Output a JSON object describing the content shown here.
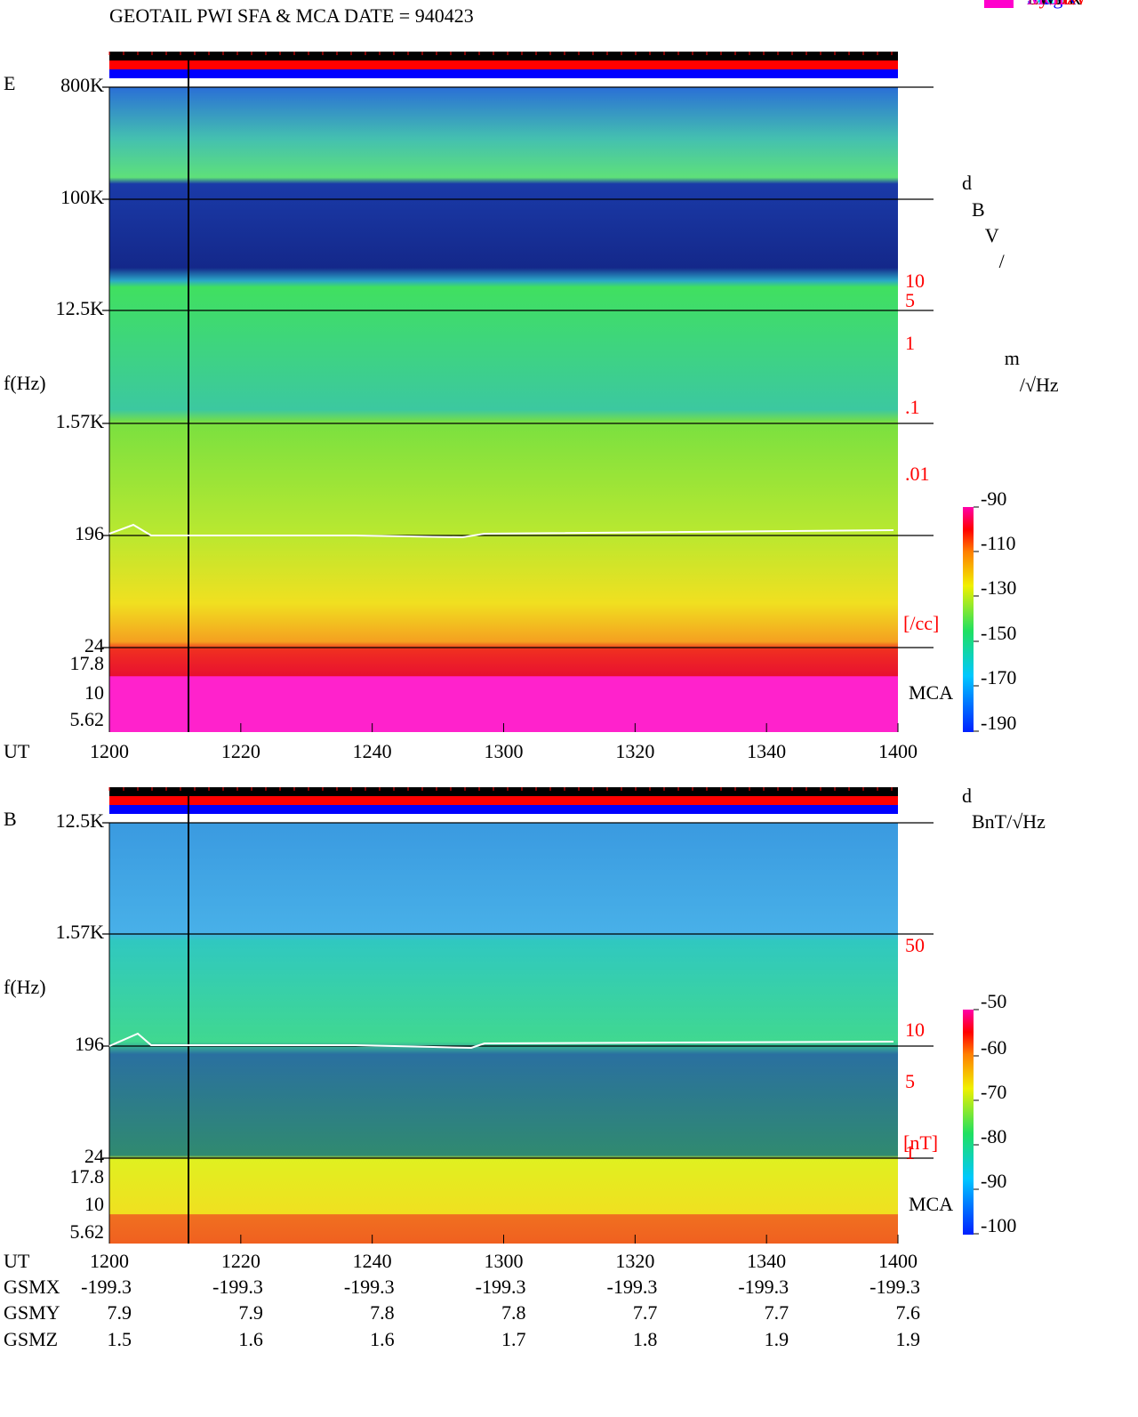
{
  "title": "GEOTAIL  PWI SFA & MCA   DATE = 940423",
  "time_axis": {
    "label": "UT",
    "ticks": [
      "1200",
      "1220",
      "1240",
      "1300",
      "1320",
      "1340",
      "1400"
    ]
  },
  "panel_e": {
    "label": "E",
    "ylabel": "f(Hz)",
    "freq_ticks": [
      "800K",
      "100K",
      "12.5K",
      "1.57K",
      "196",
      "24",
      "17.8",
      "10",
      "5.62"
    ],
    "density_ticks": [
      "10",
      "5",
      "1",
      ".1",
      ".01"
    ],
    "density_unit": "[/cc]",
    "mca": "MCA",
    "legend": [
      {
        "name": "MemR",
        "color": "#000000"
      },
      {
        "name": "MemW",
        "color": "#ff0000"
      },
      {
        "name": "Sing",
        "color": "#0000ff"
      },
      {
        "name": "Dual",
        "color": "#00e5ee"
      },
      {
        "name": "Ex Bx",
        "color": "#0000ff"
      },
      {
        "name": "Ey Bz",
        "color": "#ff0000"
      }
    ],
    "colorbar_unit": "dBV/m/√Hz",
    "colorbar_ticks": [
      "-90",
      "-110",
      "-130",
      "-150",
      "-170",
      "-190"
    ]
  },
  "panel_b": {
    "label": "B",
    "ylabel": "f(Hz)",
    "freq_ticks": [
      "12.5K",
      "1.57K",
      "196",
      "24",
      "17.8",
      "10",
      "5.62"
    ],
    "field_ticks": [
      "50",
      "10",
      "5",
      "1"
    ],
    "field_unit": "[nT]",
    "mca": "MCA",
    "legend": [
      {
        "name": "PWI",
        "color": "#000000"
      },
      {
        "name": "MGF",
        "color": "#ff00cc"
      }
    ],
    "colorbar_unit": "dBnT/√Hz",
    "colorbar_ticks": [
      "-50",
      "-60",
      "-70",
      "-80",
      "-90",
      "-100"
    ]
  },
  "orbit": [
    {
      "name": "GSMX",
      "values": [
        "-199.3",
        "-199.3",
        "-199.3",
        "-199.3",
        "-199.3",
        "-199.3",
        "-199.3"
      ]
    },
    {
      "name": "GSMY",
      "values": [
        "7.9",
        "7.9",
        "7.8",
        "7.8",
        "7.7",
        "7.7",
        "7.6"
      ]
    },
    {
      "name": "GSMZ",
      "values": [
        "1.5",
        "1.6",
        "1.6",
        "1.7",
        "1.8",
        "1.9",
        "1.9"
      ]
    }
  ]
}
